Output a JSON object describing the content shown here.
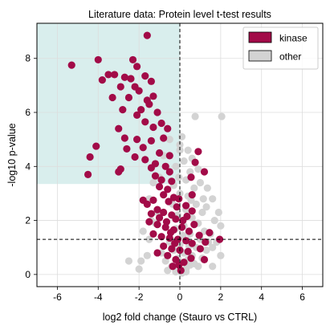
{
  "chart_data": {
    "type": "scatter",
    "title": "Literature data: Protein level t-test results",
    "xlabel": "log2 fold change (Stauro vs CTRL)",
    "ylabel": "-log10 p-value",
    "xlim": [
      -7,
      7
    ],
    "ylim": [
      -0.45,
      9.3
    ],
    "xticks": [
      "-6",
      "-4",
      "-2",
      "0",
      "2",
      "4",
      "6"
    ],
    "yticks": [
      "0",
      "2",
      "4",
      "6",
      "8"
    ],
    "grid": true,
    "legend_position": "top-right",
    "thresholds": {
      "x": 0,
      "y": 1.3
    },
    "highlight_region": {
      "x": [
        -7,
        0
      ],
      "y": [
        3.35,
        9.3
      ],
      "color": "#d9eeed"
    },
    "series": [
      {
        "name": "other",
        "color": "#d3d3d3",
        "points": [
          [
            -0.2,
            0.1
          ],
          [
            0.1,
            0.05
          ],
          [
            0.3,
            0.2
          ],
          [
            -0.4,
            0.3
          ],
          [
            0.5,
            0.35
          ],
          [
            -0.6,
            0.15
          ],
          [
            0.7,
            0.4
          ],
          [
            -0.1,
            0.6
          ],
          [
            0.2,
            0.8
          ],
          [
            0.4,
            0.55
          ],
          [
            -0.3,
            0.9
          ],
          [
            0.6,
            0.7
          ],
          [
            -0.7,
            0.5
          ],
          [
            0.9,
            0.3
          ],
          [
            1.1,
            0.6
          ],
          [
            -0.9,
            0.8
          ],
          [
            0.8,
            1.0
          ],
          [
            1.3,
            0.9
          ],
          [
            0.0,
            1.1
          ],
          [
            0.35,
            1.25
          ],
          [
            -0.5,
            1.2
          ],
          [
            1.0,
            1.3
          ],
          [
            1.2,
            1.6
          ],
          [
            0.5,
            1.5
          ],
          [
            0.2,
            1.8
          ],
          [
            0.9,
            1.9
          ],
          [
            -0.2,
            1.7
          ],
          [
            1.4,
            1.2
          ],
          [
            0.6,
            2.1
          ],
          [
            1.1,
            2.3
          ],
          [
            0.3,
            2.4
          ],
          [
            -0.1,
            2.2
          ],
          [
            0.8,
            2.6
          ],
          [
            1.3,
            2.5
          ],
          [
            0.4,
            2.9
          ],
          [
            0.0,
            3.0
          ],
          [
            0.7,
            3.2
          ],
          [
            1.0,
            3.4
          ],
          [
            0.3,
            3.5
          ],
          [
            -0.3,
            3.3
          ],
          [
            0.5,
            3.8
          ],
          [
            0.9,
            3.9
          ],
          [
            0.2,
            4.2
          ],
          [
            0.6,
            4.3
          ],
          [
            -0.2,
            4.0
          ],
          [
            0.4,
            4.6
          ],
          [
            0.0,
            4.8
          ],
          [
            -0.5,
            5.0
          ],
          [
            0.1,
            5.1
          ],
          [
            -0.8,
            4.4
          ],
          [
            -1.0,
            3.6
          ],
          [
            -1.3,
            3.4
          ],
          [
            -1.5,
            2.8
          ],
          [
            1.6,
            2.8
          ],
          [
            1.7,
            2.0
          ],
          [
            1.5,
            1.5
          ],
          [
            2.0,
            1.8
          ],
          [
            1.9,
            2.3
          ],
          [
            -1.2,
            1.9
          ],
          [
            -1.5,
            1.3
          ],
          [
            -1.8,
            1.6
          ],
          [
            -1.6,
            0.7
          ],
          [
            -2.5,
            0.5
          ],
          [
            -1.9,
            0.5
          ],
          [
            -2.0,
            0.2
          ],
          [
            2.0,
            0.7
          ],
          [
            1.6,
            0.3
          ],
          [
            0.75,
            5.85
          ],
          [
            2.05,
            5.85
          ],
          [
            0.0,
            4.6
          ],
          [
            0.3,
            0.1
          ],
          [
            -0.35,
            2.6
          ],
          [
            0.15,
            1.45
          ],
          [
            0.55,
            2.75
          ],
          [
            -0.05,
            3.6
          ],
          [
            1.15,
            2.8
          ],
          [
            1.35,
            3.2
          ],
          [
            -1.1,
            2.3
          ],
          [
            -1.4,
            2.0
          ],
          [
            0.45,
            1.05
          ],
          [
            1.6,
            1.0
          ],
          [
            1.8,
            1.2
          ]
        ]
      },
      {
        "name": "kinase",
        "color": "#a20b48",
        "points": [
          [
            -1.6,
            8.85
          ],
          [
            -2.3,
            7.95
          ],
          [
            -4.0,
            7.95
          ],
          [
            -5.3,
            7.75
          ],
          [
            -2.1,
            7.7
          ],
          [
            -3.2,
            7.4
          ],
          [
            -3.5,
            7.4
          ],
          [
            -2.7,
            7.3
          ],
          [
            -1.7,
            7.35
          ],
          [
            -3.8,
            7.2
          ],
          [
            -2.4,
            7.25
          ],
          [
            -1.4,
            7.15
          ],
          [
            -2.9,
            6.95
          ],
          [
            -2.2,
            6.95
          ],
          [
            -2.0,
            6.8
          ],
          [
            -1.3,
            6.6
          ],
          [
            -2.5,
            6.55
          ],
          [
            -3.3,
            6.55
          ],
          [
            -1.6,
            6.45
          ],
          [
            -1.5,
            6.3
          ],
          [
            -2.8,
            6.1
          ],
          [
            -1.9,
            6.1
          ],
          [
            -1.1,
            6.0
          ],
          [
            -2.1,
            5.9
          ],
          [
            -1.7,
            5.65
          ],
          [
            -1.3,
            5.45
          ],
          [
            -0.9,
            5.6
          ],
          [
            -0.6,
            5.4
          ],
          [
            -3.0,
            5.4
          ],
          [
            -2.7,
            5.05
          ],
          [
            -2.1,
            5.0
          ],
          [
            -0.8,
            5.05
          ],
          [
            -1.4,
            4.95
          ],
          [
            -4.1,
            4.75
          ],
          [
            -2.6,
            4.65
          ],
          [
            -1.8,
            4.7
          ],
          [
            -1.0,
            4.5
          ],
          [
            -0.5,
            4.4
          ],
          [
            -4.4,
            4.35
          ],
          [
            -2.2,
            4.35
          ],
          [
            -1.7,
            4.25
          ],
          [
            -1.2,
            4.1
          ],
          [
            -2.9,
            3.9
          ],
          [
            -3.0,
            3.8
          ],
          [
            -4.5,
            3.7
          ],
          [
            -1.4,
            3.95
          ],
          [
            -0.7,
            4.0
          ],
          [
            -0.5,
            3.8
          ],
          [
            -1.2,
            3.65
          ],
          [
            -0.9,
            3.5
          ],
          [
            -0.4,
            3.45
          ],
          [
            -1.0,
            3.25
          ],
          [
            -0.6,
            3.15
          ],
          [
            0.9,
            4.55
          ],
          [
            0.75,
            4.15
          ],
          [
            1.2,
            3.8
          ],
          [
            0.55,
            3.6
          ],
          [
            -0.8,
            2.95
          ],
          [
            -0.3,
            2.85
          ],
          [
            -1.3,
            2.75
          ],
          [
            -0.55,
            2.7
          ],
          [
            -0.15,
            2.5
          ],
          [
            -1.1,
            2.4
          ],
          [
            -0.8,
            2.3
          ],
          [
            -0.4,
            2.2
          ],
          [
            -1.8,
            2.75
          ],
          [
            -1.6,
            2.6
          ],
          [
            -1.4,
            2.25
          ],
          [
            0.3,
            2.55
          ],
          [
            0.6,
            2.35
          ],
          [
            -0.2,
            2.05
          ],
          [
            -1.5,
            1.95
          ],
          [
            -1.1,
            1.85
          ],
          [
            -0.7,
            1.75
          ],
          [
            -0.3,
            1.65
          ],
          [
            0.1,
            1.75
          ],
          [
            0.45,
            1.6
          ],
          [
            0.7,
            1.85
          ],
          [
            -1.3,
            1.5
          ],
          [
            -0.9,
            1.4
          ],
          [
            -0.5,
            1.35
          ],
          [
            -0.1,
            1.3
          ],
          [
            0.3,
            1.25
          ],
          [
            0.6,
            1.15
          ],
          [
            0.95,
            1.45
          ],
          [
            1.25,
            1.2
          ],
          [
            1.45,
            1.55
          ],
          [
            1.0,
            0.95
          ],
          [
            -0.8,
            1.05
          ],
          [
            -0.4,
            0.95
          ],
          [
            0.0,
            0.9
          ],
          [
            0.4,
            0.85
          ],
          [
            -1.1,
            0.8
          ],
          [
            -0.6,
            0.7
          ],
          [
            -0.2,
            0.55
          ],
          [
            0.2,
            0.45
          ],
          [
            0.55,
            0.6
          ],
          [
            -0.35,
            0.3
          ],
          [
            0.05,
            0.15
          ],
          [
            -0.05,
            0.35
          ],
          [
            1.95,
            1.3
          ],
          [
            1.2,
            0.55
          ],
          [
            -0.25,
            1.15
          ],
          [
            0.15,
            2.0
          ],
          [
            0.6,
            2.95
          ],
          [
            -0.05,
            2.8
          ],
          [
            0.35,
            2.15
          ],
          [
            -0.65,
            1.95
          ],
          [
            -1.0,
            2.1
          ],
          [
            -0.45,
            1.55
          ]
        ]
      }
    ]
  }
}
